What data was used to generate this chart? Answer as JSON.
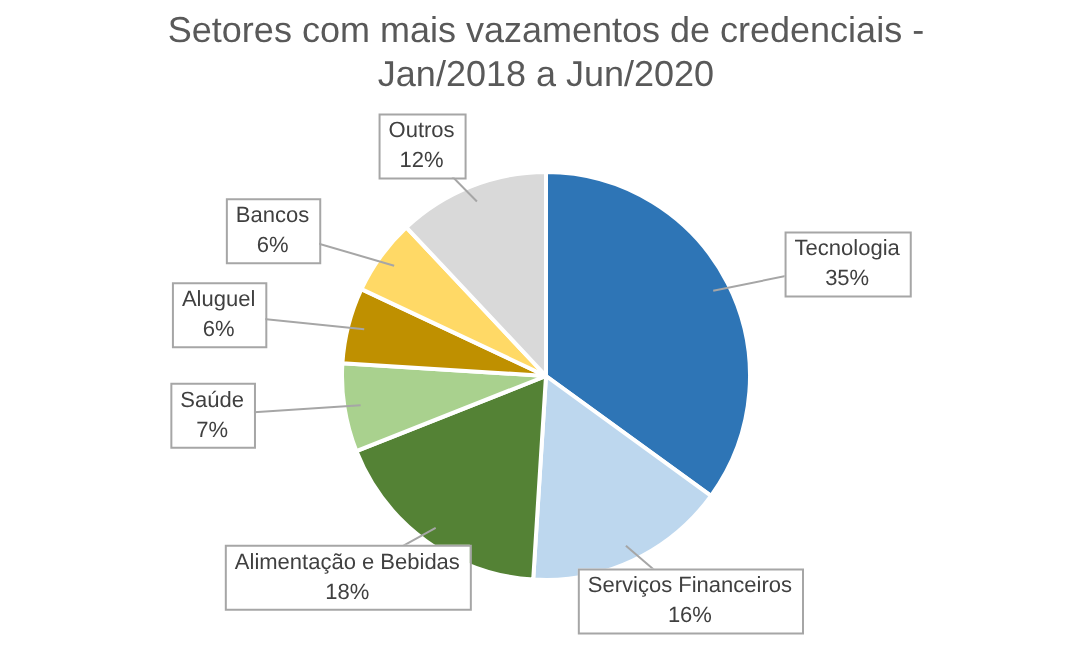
{
  "chart_data": {
    "type": "pie",
    "title": "Setores com mais vazamentos de credenciais - Jan/2018 a Jun/2020",
    "categories": [
      "Tecnologia",
      "Serviços Financeiros",
      "Alimentação e Bebidas",
      "Saúde",
      "Aluguel",
      "Bancos",
      "Outros"
    ],
    "values": [
      35,
      16,
      18,
      7,
      6,
      6,
      12
    ],
    "value_labels": [
      "35%",
      "16%",
      "18%",
      "7%",
      "6%",
      "6%",
      "12%"
    ],
    "colors": [
      "#2e75b6",
      "#bdd7ee",
      "#548235",
      "#a9d18e",
      "#bf9000",
      "#ffd966",
      "#d9d9d9"
    ],
    "legend": false
  }
}
